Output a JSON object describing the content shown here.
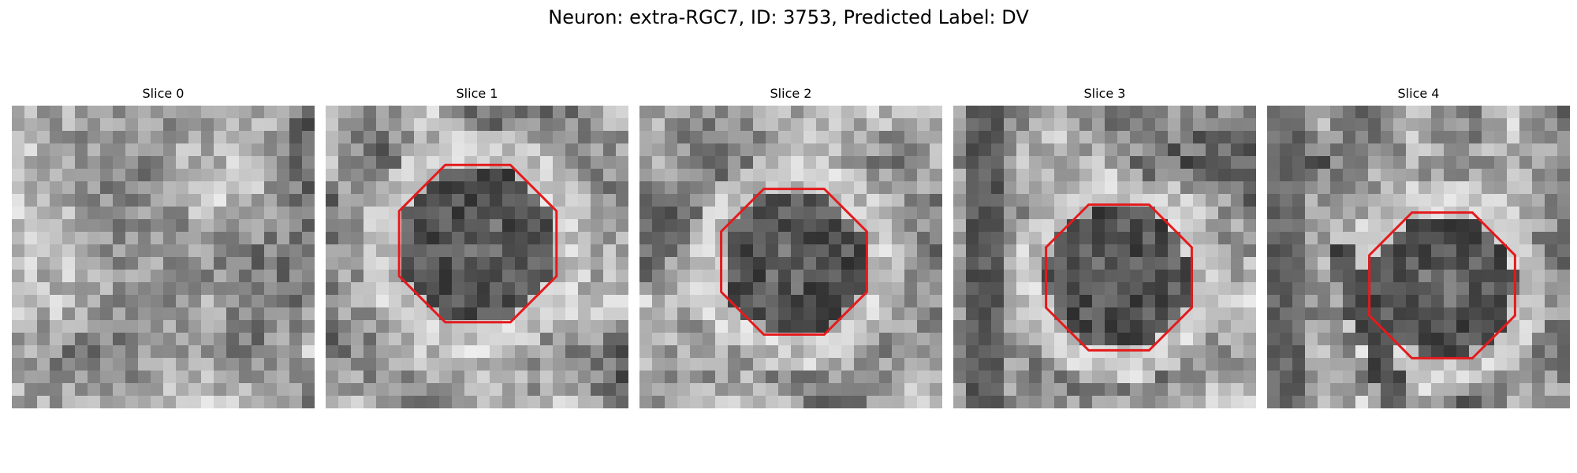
{
  "figure": {
    "title": "Neuron: extra-RGC7, ID: 3753, Predicted Label: DV",
    "contour_color": "#e41a1c"
  },
  "panels": [
    {
      "title": "Slice 0",
      "has_contour": false,
      "dark_region": "none"
    },
    {
      "title": "Slice 1",
      "has_contour": true,
      "dark_region": "round-soma"
    },
    {
      "title": "Slice 2",
      "has_contour": true,
      "dark_region": "round-soma"
    },
    {
      "title": "Slice 3",
      "has_contour": true,
      "dark_region": "round-soma"
    },
    {
      "title": "Slice 4",
      "has_contour": true,
      "dark_region": "round-soma"
    }
  ]
}
